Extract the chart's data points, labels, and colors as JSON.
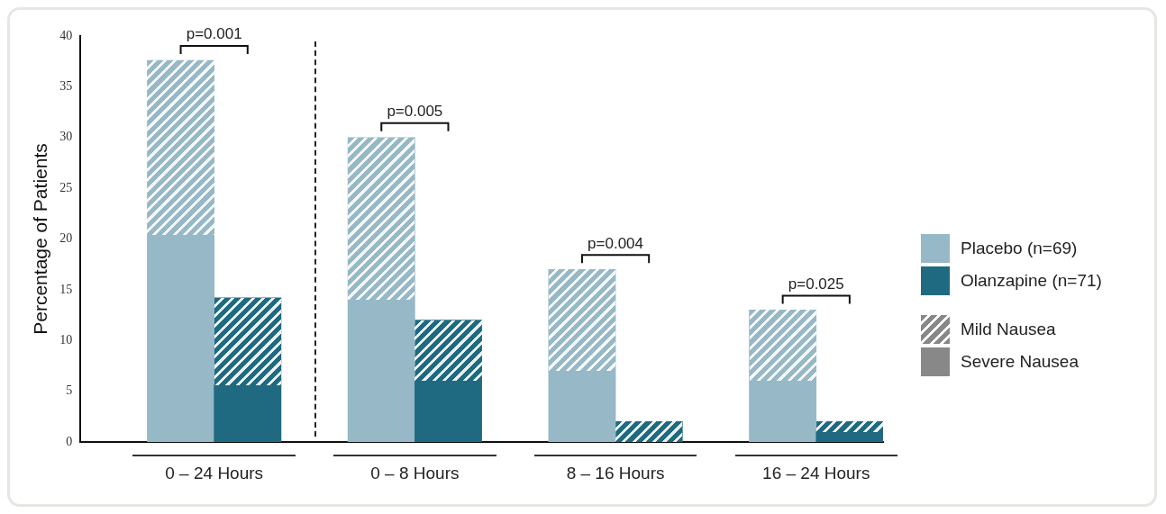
{
  "chart_data": {
    "type": "bar",
    "ylabel": "Percentage of Patients",
    "categories": [
      null,
      "0 – 24 Hours",
      null,
      null,
      "0 – 8 Hours",
      null,
      null,
      "8 – 16 Hours",
      null,
      null,
      "16 – 24 Hours",
      null
    ],
    "stacked": true,
    "series": [
      {
        "name": "Severe Nausea",
        "color": "#888888",
        "colors": [
          "#97b8c6",
          "#97b8c6",
          "#1f6a80",
          "#97b8c6",
          "#97b8c6",
          "#1f6a80",
          "#97b8c6",
          "#97b8c6",
          "#1f6a80",
          "#97b8c6",
          "#97b8c6",
          "#1f6a80"
        ],
        "values": [
          null,
          20.4,
          5.6,
          null,
          14,
          6,
          null,
          7,
          0,
          null,
          6,
          1
        ]
      },
      {
        "name": "Mild Nausea",
        "color": "#888888",
        "colors": [
          "#97b8c6",
          "#97b8c6",
          "#1f6a80",
          "#97b8c6",
          "#97b8c6",
          "#1f6a80",
          "#97b8c6",
          "#97b8c6",
          "#1f6a80",
          "#97b8c6",
          "#97b8c6",
          "#1f6a80"
        ],
        "values": [
          null,
          17.2,
          8.6,
          null,
          16,
          6,
          null,
          10,
          2,
          null,
          7,
          1
        ]
      }
    ],
    "ylim": [
      0,
      40
    ],
    "yticks": [
      0,
      5,
      10,
      15,
      20,
      25,
      30,
      35,
      40
    ],
    "grid": false,
    "legend": "right",
    "annotations": [
      "p=0.001",
      "p=0.005",
      "p=0.004",
      "p=0.025",
      "Placebo (n=69)",
      "Olanzapine (n=71)"
    ]
  }
}
